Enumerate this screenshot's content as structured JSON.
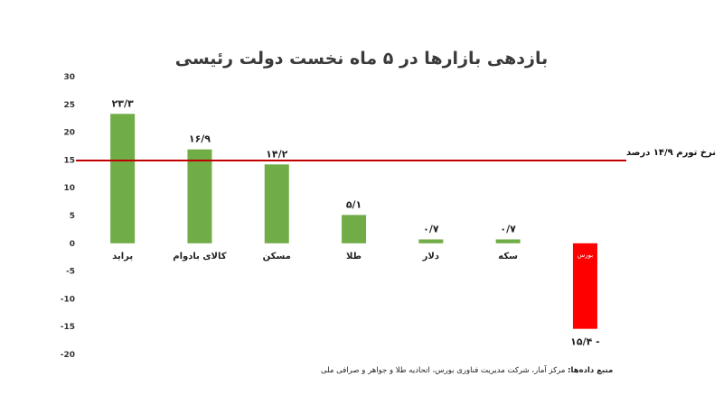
{
  "chart_data": {
    "type": "bar",
    "title": "بازدهی بازارها در ۵ ماه نخست دولت رئیسی",
    "categories": [
      "پراید",
      "کالای بادوام",
      "مسکن",
      "طلا",
      "دلار",
      "سکه",
      "بورس"
    ],
    "values": [
      23.3,
      16.9,
      14.2,
      5.1,
      0.7,
      0.7,
      -15.4
    ],
    "data_labels": [
      "۲۳/۳",
      "۱۶/۹",
      "۱۴/۲",
      "۵/۱",
      "۰/۷",
      "۰/۷",
      "۱۵/۴ -"
    ],
    "yticks": [
      30,
      25,
      20,
      15,
      10,
      5,
      0,
      -5,
      -10,
      -15,
      -20
    ],
    "ytick_labels": [
      "30",
      "25",
      "20",
      "15",
      "10",
      "5",
      "0",
      "-5",
      "-10",
      "-15",
      "-20"
    ],
    "ylim": [
      -20,
      30
    ],
    "xlabel": "",
    "ylabel": "",
    "grid": false,
    "reference_line": {
      "value": 14.9,
      "label": "نرخ تورم ۱۴/۹ درصد"
    },
    "colors": {
      "positive": "#70ad47",
      "negative": "#ff0000",
      "reference": "#c00000"
    },
    "source_label": "منبع داده‌ها:",
    "source_text": " مرکز آمار، شرکت مدیریت فناوری بورس، اتحادیه طلا و جواهر و صرافی ملی"
  }
}
